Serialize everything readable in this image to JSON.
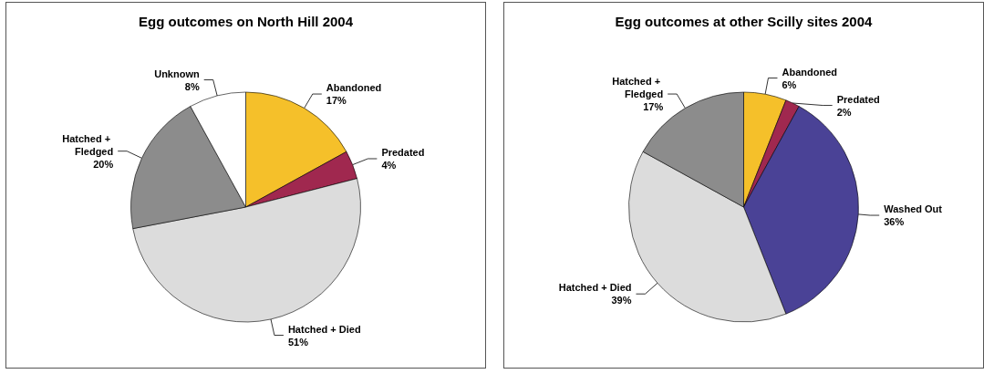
{
  "chart_data": [
    {
      "type": "pie",
      "title": "Egg outcomes on North Hill 2004",
      "categories": [
        "Abandoned",
        "Predated",
        "Hatched + Died",
        "Hatched + Fledged",
        "Unknown"
      ],
      "values": [
        17,
        4,
        51,
        20,
        8
      ],
      "value_labels": [
        "17%",
        "4%",
        "51%",
        "20%",
        "8%"
      ],
      "colors": [
        "#f5c02a",
        "#a0284f",
        "#dcdcdc",
        "#8c8c8c",
        "#ffffff"
      ]
    },
    {
      "type": "pie",
      "title": "Egg outcomes at other Scilly sites 2004",
      "categories": [
        "Abandoned",
        "Predated",
        "Washed Out",
        "Hatched + Died",
        "Hatched + Fledged"
      ],
      "values": [
        6,
        2,
        36,
        39,
        17
      ],
      "value_labels": [
        "6%",
        "2%",
        "36%",
        "39%",
        "17%"
      ],
      "colors": [
        "#f5c02a",
        "#a0284f",
        "#4a4296",
        "#dcdcdc",
        "#8c8c8c"
      ]
    }
  ]
}
